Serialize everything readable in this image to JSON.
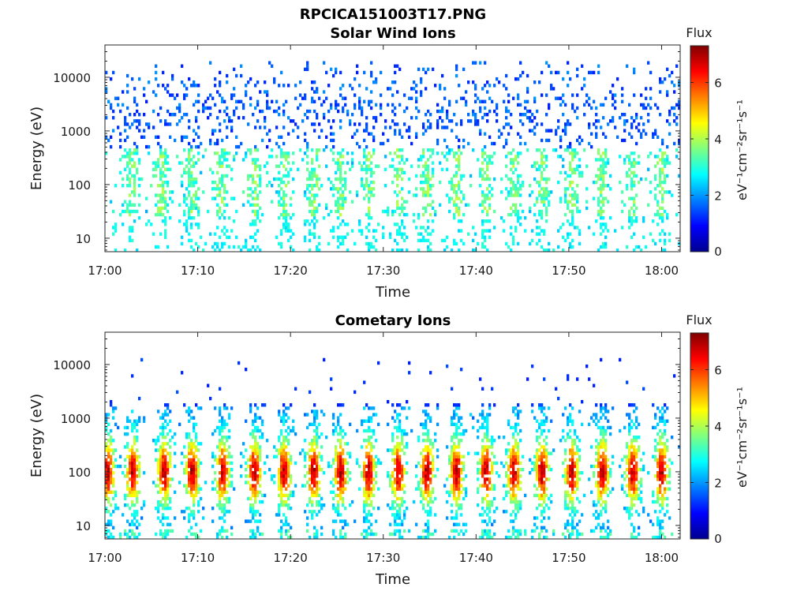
{
  "figure": {
    "title": "RPCICA151003T17.PNG"
  },
  "chart_data": [
    {
      "type": "heatmap",
      "title": "Solar Wind Ions",
      "xlabel": "Time",
      "ylabel": "Energy (eV)",
      "x_ticks": [
        "17:00",
        "17:10",
        "17:20",
        "17:30",
        "17:40",
        "17:50",
        "18:00"
      ],
      "y_ticks": [
        "10",
        "100",
        "1000",
        "10000"
      ],
      "y_scale": "log",
      "y_range_ev": [
        5.6,
        40000
      ],
      "x_range": [
        "17:00",
        "18:02"
      ],
      "colorbar": {
        "title": "Flux",
        "unit_label": "eV⁻¹cm⁻²sr⁻¹s⁻¹",
        "ticks": [
          "0",
          "2",
          "4",
          "6"
        ],
        "range": [
          0,
          7.3
        ]
      },
      "bursts_minutes": [
        2.8,
        6.1,
        9.3,
        12.5,
        16.1,
        19.3,
        22.5,
        25.4,
        28.4,
        31.6,
        34.7,
        37.9,
        41.1,
        44.1,
        47.1,
        50.3,
        53.6,
        56.9,
        60.0
      ],
      "notes": "Sparse low-flux counts (flux ~1-2) across 300-30000 eV; moderate bursts (flux ~2-4) near 30-400 eV."
    },
    {
      "type": "heatmap",
      "title": "Cometary Ions",
      "xlabel": "Time",
      "ylabel": "Energy (eV)",
      "x_ticks": [
        "17:00",
        "17:10",
        "17:20",
        "17:30",
        "17:40",
        "17:50",
        "18:00"
      ],
      "y_ticks": [
        "10",
        "100",
        "1000",
        "10000"
      ],
      "y_scale": "log",
      "y_range_ev": [
        5.6,
        40000
      ],
      "x_range": [
        "17:00",
        "18:02"
      ],
      "colorbar": {
        "title": "Flux",
        "unit_label": "eV⁻¹cm⁻²sr⁻¹s⁻¹",
        "ticks": [
          "0",
          "2",
          "4",
          "6"
        ],
        "range": [
          0,
          7.3
        ]
      },
      "bursts_minutes": [
        0.3,
        3.0,
        6.4,
        9.4,
        12.7,
        16.1,
        19.3,
        22.5,
        25.4,
        28.4,
        31.6,
        34.7,
        37.9,
        41.1,
        44.1,
        47.1,
        50.3,
        53.6,
        56.9,
        60.0
      ],
      "notes": "Strong vertical bursts (flux 3-6.5) centred near 60-150 eV, spanning ~8-1500 eV; isolated counts up to ~10000 eV."
    }
  ]
}
